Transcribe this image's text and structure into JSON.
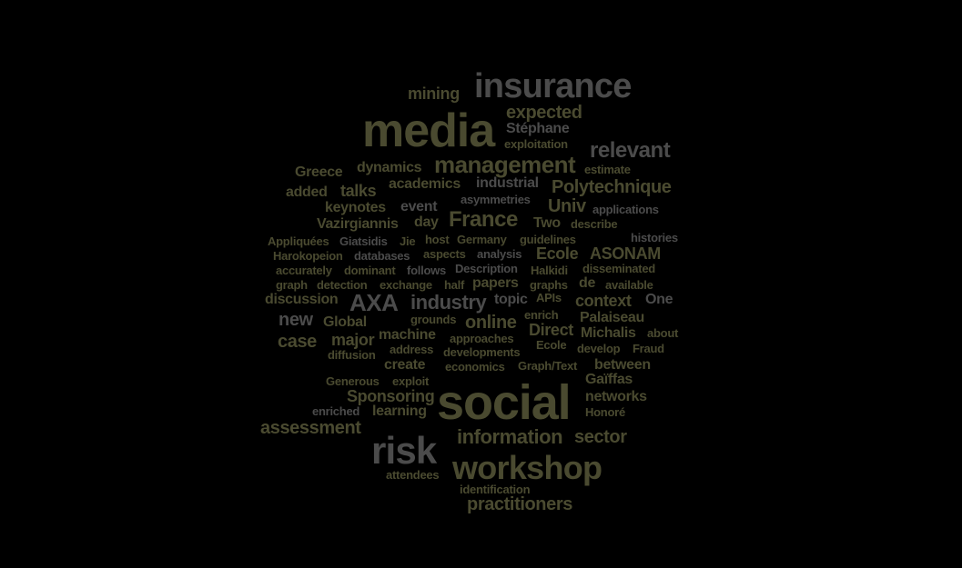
{
  "colors": {
    "background": "#000000",
    "olive": "#4a4a30",
    "grey": "#4b4b4b"
  },
  "words": {
    "insurance": "insurance",
    "mining": "mining",
    "media": "media",
    "expected": "expected",
    "stephane": "Stéphane",
    "exploitation": "exploitation",
    "relevant": "relevant",
    "greece": "Greece",
    "dynamics": "dynamics",
    "management": "management",
    "estimate": "estimate",
    "added": "added",
    "talks": "talks",
    "academics": "academics",
    "industrial": "industrial",
    "polytechnique": "Polytechnique",
    "keynotes": "keynotes",
    "event": "event",
    "asymmetries": "asymmetries",
    "univ": "Univ",
    "applications": "applications",
    "vazirgiannis": "Vazirgiannis",
    "day": "day",
    "france": "France",
    "two": "Two",
    "describe": "describe",
    "appliquees": "Appliquées",
    "gtatsidis": "Giatsidis",
    "jie": "Jie",
    "host": "host",
    "germany": "Germany",
    "guidelines": "guidelines",
    "histories": "histories",
    "harokopeion": "Harokopeion",
    "databases": "databases",
    "aspects": "aspects",
    "analysis": "analysis",
    "ecole1": "Ecole",
    "asonam": "ASONAM",
    "accurately": "accurately",
    "dominant": "dominant",
    "follows": "follows",
    "description": "Description",
    "halkidi": "Halkidi",
    "disseminated": "disseminated",
    "graph": "graph",
    "detection": "detection",
    "exchange": "exchange",
    "half": "half",
    "papers": "papers",
    "graphs": "graphs",
    "de": "de",
    "available": "available",
    "discussion": "discussion",
    "axa": "AXA",
    "industry": "industry",
    "topic": "topic",
    "apis": "APIs",
    "context": "context",
    "one": "One",
    "new": "new",
    "global": "Global",
    "grounds": "grounds",
    "online": "online",
    "enrich": "enrich",
    "palaiseau": "Palaiseau",
    "case": "case",
    "major": "major",
    "machine": "machine",
    "approaches": "approaches",
    "direct": "Direct",
    "michalis": "Michalis",
    "about": "about",
    "diffusion": "diffusion",
    "address": "address",
    "developments": "developments",
    "ecole2": "Ecole",
    "develop": "develop",
    "fraud": "Fraud",
    "create": "create",
    "economics": "economics",
    "graphtext": "Graph/Text",
    "between": "between",
    "generous": "Generous",
    "exploit": "exploit",
    "gaiffas": "Gaïffas",
    "sponsoring": "Sponsoring",
    "social": "social",
    "networks": "networks",
    "enriched": "enriched",
    "learning": "learning",
    "honore": "Honoré",
    "assessment": "assessment",
    "information": "information",
    "sector": "sector",
    "risk": "risk",
    "workshop": "workshop",
    "attendees": "attendees",
    "identification": "identification",
    "practitioners": "practitioners"
  }
}
